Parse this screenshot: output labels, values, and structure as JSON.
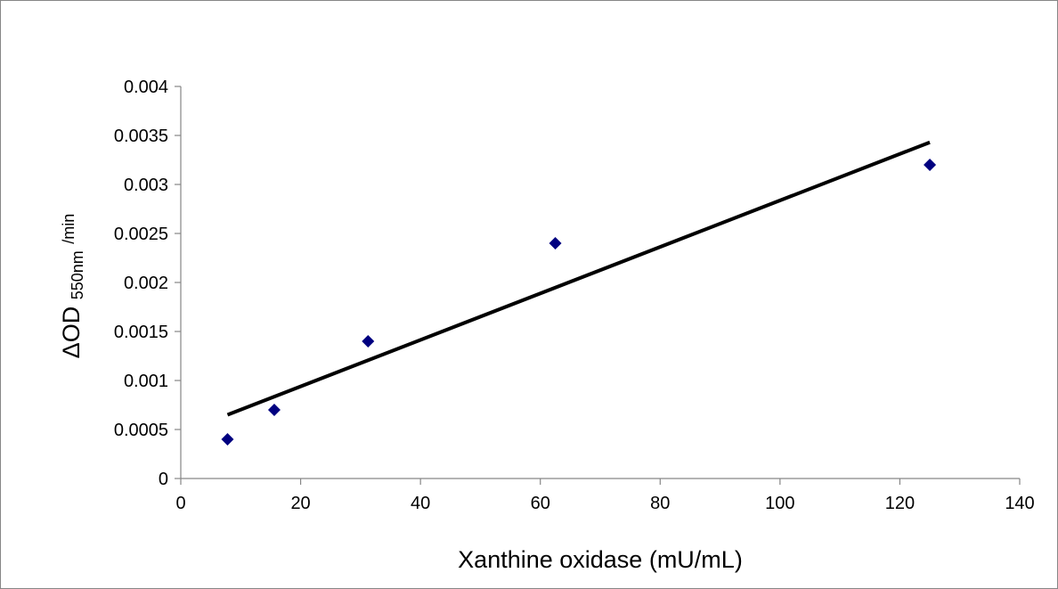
{
  "chart_data": {
    "type": "scatter",
    "title": "",
    "xlabel": "Xanthine oxidase (mU/mL)",
    "ylabel": {
      "prefix": "ΔOD",
      "subscript": "550nm",
      "superscript": "/min"
    },
    "xlim": [
      0,
      140
    ],
    "ylim": [
      0,
      0.004
    ],
    "x_ticks": [
      "0",
      "20",
      "40",
      "60",
      "80",
      "100",
      "120",
      "140"
    ],
    "y_ticks": [
      "0",
      "0.0005",
      "0.001",
      "0.0015",
      "0.002",
      "0.0025",
      "0.003",
      "0.0035",
      "0.004"
    ],
    "grid": false,
    "legend": "none",
    "marker": "diamond",
    "marker_color": "#000080",
    "series": [
      {
        "x": [
          7.8,
          15.6,
          31.25,
          62.5,
          125
        ],
        "y": [
          0.0004,
          0.0007,
          0.0014,
          0.0024,
          0.0032
        ]
      }
    ],
    "trendline": {
      "type": "linear",
      "color": "#000000",
      "x": [
        7.8,
        125
      ],
      "y": [
        0.00065,
        0.00343
      ]
    }
  }
}
